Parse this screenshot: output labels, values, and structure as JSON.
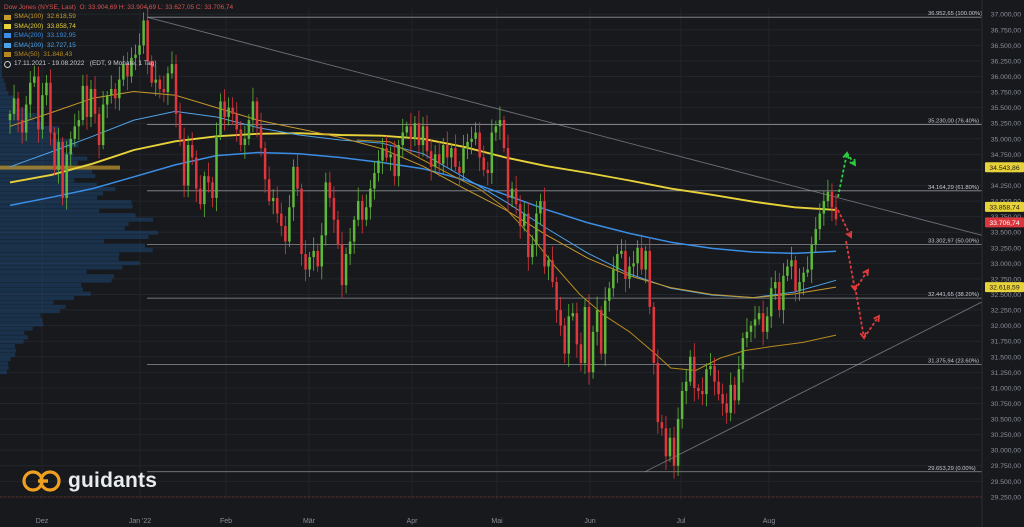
{
  "header": {
    "instrument": "Dow Jones (NYSE, Last)",
    "ohlc": "O: 33.904,69  H: 33.904,69  L: 33.627,05  C: 33.706,74",
    "period": "17.11.2021 - 19.08.2022",
    "period_detail": "(EDT, 9 Monate, 1 Tag)"
  },
  "legend": [
    {
      "label": "SMA(100)",
      "value": "32.618,59",
      "color": "#c89a2c"
    },
    {
      "label": "SMA(200)",
      "value": "33.858,74",
      "color": "#e8d23a"
    },
    {
      "label": "EMA(200)",
      "value": "33.192,95",
      "color": "#3a8ee6"
    },
    {
      "label": "EMA(100)",
      "value": "32.727,15",
      "color": "#4ea3e8"
    },
    {
      "label": "SMA(50)",
      "value": "31.848,43",
      "color": "#b88a1e"
    }
  ],
  "logo": {
    "text": "guidants"
  },
  "chart_data": {
    "type": "candlestick",
    "x_labels": [
      "Dez",
      "Jan '22",
      "Feb",
      "Mär",
      "Apr",
      "Mai",
      "Jun",
      "Jul",
      "Aug"
    ],
    "y_ticks": [
      29250,
      29500,
      29750,
      30000,
      30250,
      30500,
      30750,
      31000,
      31250,
      31500,
      31750,
      32000,
      32250,
      32500,
      32750,
      33000,
      33250,
      33500,
      33750,
      34000,
      34250,
      34500,
      34750,
      35000,
      35250,
      35500,
      35750,
      36000,
      36250,
      36500,
      36750,
      37000
    ],
    "ylim": [
      29200,
      37100
    ],
    "fib_levels": [
      {
        "label": "36.952,65 (100.00%)",
        "value": 36952.65
      },
      {
        "label": "35.230,00 (76.40%)",
        "value": 35230
      },
      {
        "label": "34.164,29 (61.80%)",
        "value": 34164.29
      },
      {
        "label": "33.302,97 (50.00%)",
        "value": 33302.97
      },
      {
        "label": "32.441,65 (38.20%)",
        "value": 32441.65
      },
      {
        "label": "31.375,94 (23.60%)",
        "value": 31375.94
      },
      {
        "label": "29.653,29 (0.00%)",
        "value": 29653.29
      }
    ],
    "price_tags": [
      {
        "label": "34.543,86",
        "value": 34543.86,
        "bg": "#e8d23a",
        "fg": "#1a1a1a"
      },
      {
        "label": "33.858,74",
        "value": 33858.74,
        "bg": "#e8d23a",
        "fg": "#1a1a1a"
      },
      {
        "label": "33.706,74",
        "value": 33706.74,
        "bg": "#d9363e",
        "fg": "#ffffff"
      },
      {
        "label": "32.618,59",
        "value": 32618.59,
        "bg": "#e8d23a",
        "fg": "#1a1a1a"
      }
    ],
    "closes": [
      35400,
      35650,
      35300,
      35100,
      35550,
      35900,
      36000,
      35150,
      35700,
      35900,
      35100,
      34500,
      34950,
      34050,
      34750,
      35000,
      35200,
      35300,
      35850,
      35350,
      35800,
      35400,
      34900,
      35550,
      35700,
      35800,
      35650,
      35950,
      36200,
      36000,
      36300,
      36350,
      36500,
      36900,
      36250,
      35900,
      35950,
      35800,
      35750,
      36050,
      36200,
      35400,
      35000,
      34250,
      34900,
      34700,
      34200,
      33950,
      34400,
      34300,
      34050,
      35050,
      35600,
      35350,
      35500,
      35400,
      35150,
      34900,
      35000,
      35300,
      35600,
      35200,
      34850,
      34350,
      34000,
      34050,
      33800,
      33600,
      33350,
      33900,
      34550,
      34200,
      33150,
      32900,
      33100,
      33200,
      32950,
      33450,
      34300,
      34050,
      33700,
      33300,
      32650,
      33150,
      33350,
      33700,
      34000,
      33700,
      33900,
      34200,
      34450,
      34650,
      34850,
      34700,
      34750,
      34400,
      34900,
      35100,
      35200,
      35000,
      35250,
      34900,
      35200,
      34800,
      34550,
      34750,
      34600,
      34900,
      34700,
      34850,
      34550,
      34450,
      34850,
      34950,
      35000,
      35100,
      34700,
      34500,
      34450,
      35100,
      35200,
      35300,
      34850,
      34050,
      34200,
      33950,
      33600,
      33800,
      33100,
      33300,
      33800,
      34000,
      32950,
      33050,
      32700,
      32250,
      32000,
      31550,
      32150,
      32200,
      31700,
      31400,
      32300,
      31250,
      31900,
      32250,
      31550,
      32400,
      32600,
      32900,
      33150,
      33200,
      32750,
      32950,
      33000,
      33250,
      32900,
      33200,
      32300,
      31400,
      30450,
      30350,
      29900,
      30200,
      29750,
      30500,
      30950,
      31100,
      31500,
      31000,
      30950,
      30900,
      31300,
      31350,
      31100,
      30900,
      30750,
      30600,
      31050,
      30800,
      31300,
      31800,
      31900,
      32000,
      32100,
      32200,
      31900,
      32150,
      32600,
      32700,
      32250,
      32800,
      32950,
      33050,
      32550,
      32700,
      32850,
      32900,
      33300,
      33550,
      33800,
      34000,
      34150,
      33900,
      33706.74
    ],
    "overlays": {
      "SMA(200)": [
        [
          0,
          34300
        ],
        [
          0.05,
          34420
        ],
        [
          0.1,
          34600
        ],
        [
          0.15,
          34820
        ],
        [
          0.2,
          34960
        ],
        [
          0.25,
          35040
        ],
        [
          0.3,
          35080
        ],
        [
          0.35,
          35090
        ],
        [
          0.4,
          35060
        ],
        [
          0.45,
          35050
        ],
        [
          0.5,
          35000
        ],
        [
          0.55,
          34870
        ],
        [
          0.6,
          34700
        ],
        [
          0.65,
          34560
        ],
        [
          0.7,
          34450
        ],
        [
          0.75,
          34330
        ],
        [
          0.8,
          34200
        ],
        [
          0.85,
          34100
        ],
        [
          0.9,
          33990
        ],
        [
          0.95,
          33900
        ],
        [
          1,
          33858.74
        ]
      ],
      "EMA(200)": [
        [
          0,
          33930
        ],
        [
          0.05,
          34060
        ],
        [
          0.1,
          34200
        ],
        [
          0.15,
          34390
        ],
        [
          0.2,
          34580
        ],
        [
          0.25,
          34730
        ],
        [
          0.3,
          34780
        ],
        [
          0.35,
          34760
        ],
        [
          0.4,
          34700
        ],
        [
          0.45,
          34620
        ],
        [
          0.5,
          34520
        ],
        [
          0.55,
          34340
        ],
        [
          0.6,
          34100
        ],
        [
          0.65,
          33860
        ],
        [
          0.7,
          33650
        ],
        [
          0.75,
          33480
        ],
        [
          0.8,
          33340
        ],
        [
          0.85,
          33240
        ],
        [
          0.9,
          33180
        ],
        [
          0.95,
          33160
        ],
        [
          1,
          33192.95
        ]
      ],
      "EMA(100)": [
        [
          0,
          34550
        ],
        [
          0.05,
          34790
        ],
        [
          0.1,
          35040
        ],
        [
          0.15,
          35300
        ],
        [
          0.2,
          35440
        ],
        [
          0.25,
          35350
        ],
        [
          0.3,
          35180
        ],
        [
          0.35,
          35060
        ],
        [
          0.4,
          34980
        ],
        [
          0.45,
          34930
        ],
        [
          0.5,
          34760
        ],
        [
          0.55,
          34380
        ],
        [
          0.6,
          33990
        ],
        [
          0.65,
          33560
        ],
        [
          0.7,
          33160
        ],
        [
          0.75,
          32830
        ],
        [
          0.8,
          32600
        ],
        [
          0.85,
          32490
        ],
        [
          0.9,
          32450
        ],
        [
          0.95,
          32540
        ],
        [
          1,
          32727.15
        ]
      ],
      "SMA(100)": [
        [
          0,
          35200
        ],
        [
          0.05,
          35420
        ],
        [
          0.1,
          35650
        ],
        [
          0.15,
          35760
        ],
        [
          0.2,
          35700
        ],
        [
          0.25,
          35500
        ],
        [
          0.3,
          35300
        ],
        [
          0.35,
          35160
        ],
        [
          0.4,
          35020
        ],
        [
          0.45,
          34840
        ],
        [
          0.5,
          34560
        ],
        [
          0.55,
          34200
        ],
        [
          0.6,
          33860
        ],
        [
          0.65,
          33450
        ],
        [
          0.7,
          33080
        ],
        [
          0.75,
          32800
        ],
        [
          0.8,
          32610
        ],
        [
          0.85,
          32500
        ],
        [
          0.9,
          32450
        ],
        [
          0.95,
          32510
        ],
        [
          1,
          32618.59
        ]
      ],
      "SMA(50)": [
        [
          0.42,
          34980
        ],
        [
          0.46,
          34950
        ],
        [
          0.5,
          34660
        ],
        [
          0.54,
          34380
        ],
        [
          0.57,
          34180
        ],
        [
          0.6,
          33880
        ],
        [
          0.63,
          33450
        ],
        [
          0.66,
          32950
        ],
        [
          0.69,
          32500
        ],
        [
          0.72,
          32160
        ],
        [
          0.75,
          31900
        ],
        [
          0.78,
          31560
        ],
        [
          0.8,
          31320
        ],
        [
          0.83,
          31280
        ],
        [
          0.86,
          31480
        ],
        [
          0.89,
          31600
        ],
        [
          0.92,
          31660
        ],
        [
          0.96,
          31730
        ],
        [
          1,
          31848.43
        ]
      ]
    },
    "trendlines": [
      {
        "name": "resistance",
        "points": [
          [
            36952.65,
            0
          ],
          [
            33700,
            1.18
          ]
        ]
      },
      {
        "name": "support",
        "points": [
          [
            29653.29,
            0.595
          ],
          [
            32400,
            1.25
          ]
        ]
      }
    ],
    "scenario_arrows": [
      {
        "color": "#2ecc40",
        "label": "up"
      },
      {
        "color": "#e03b3b",
        "label": "down"
      }
    ]
  }
}
